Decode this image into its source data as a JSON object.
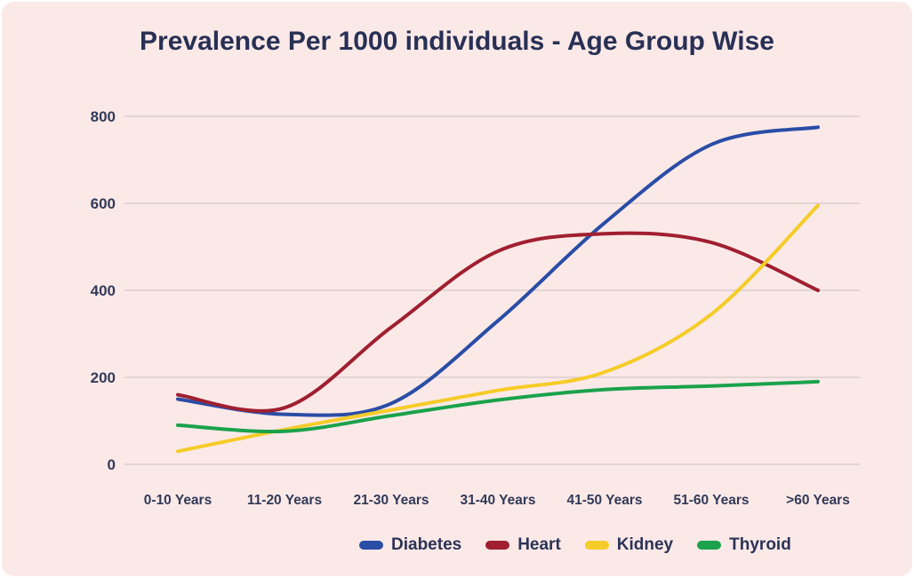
{
  "panel": {
    "background_color": "#fbe9e8",
    "text_color": "#2b3356",
    "gridline_color": "#d9cdcd"
  },
  "title": "Prevalence Per 1000 individuals - Age Group Wise",
  "chart_data": {
    "type": "line",
    "title": "Prevalence Per 1000 individuals - Age Group Wise",
    "categories": [
      "0-10 Years",
      "11-20 Years",
      "21-30 Years",
      "31-40 Years",
      "41-50 Years",
      "51-60 Years",
      ">60 Years"
    ],
    "series": [
      {
        "name": "Diabetes",
        "color": "#2a4da6",
        "values": [
          150,
          115,
          140,
          330,
          555,
          735,
          775
        ]
      },
      {
        "name": "Heart",
        "color": "#a01f30",
        "values": [
          160,
          130,
          315,
          490,
          530,
          510,
          400
        ]
      },
      {
        "name": "Kidney",
        "color": "#f5cc28",
        "values": [
          30,
          80,
          125,
          170,
          212,
          345,
          595
        ]
      },
      {
        "name": "Thyroid",
        "color": "#1aa24c",
        "values": [
          90,
          76,
          112,
          148,
          172,
          180,
          190
        ]
      }
    ],
    "xlabel": "",
    "ylabel": "",
    "ylim": [
      0,
      800
    ],
    "yticks": [
      0,
      200,
      400,
      600,
      800
    ],
    "grid": "horizontal-only",
    "line_style": "smooth",
    "legend_position": "bottom"
  }
}
